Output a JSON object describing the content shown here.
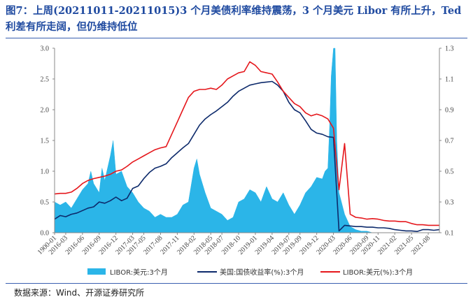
{
  "title": "图7：上周(20211011-20211015)3 个月美债利率维持震荡，3 个月美元 Libor 有所上升，Ted 利差有所走阔，但仍维持低位",
  "source": "数据来源：Wind、开源证券研究所",
  "colors": {
    "area": "#2bb5e8",
    "treasury": "#0d2a6b",
    "libor_line": "#e5171c",
    "title": "#1f4aa0"
  },
  "chart_data": {
    "type": "area+line",
    "x_tick_labels": [
      "1900-01",
      "2016-03",
      "2016-06",
      "2016-09",
      "2016-12",
      "2017-03",
      "2017-05",
      "2017-08",
      "2017-11",
      "2018-02",
      "2018-05",
      "2018-07",
      "2018-10",
      "2019-01",
      "2019-04",
      "2019-07",
      "2019-09",
      "2019-12",
      "2020-03",
      "2020-06",
      "2020-09",
      "2020-11",
      "2021-02",
      "2021-05",
      "2021-08"
    ],
    "ylim_left": [
      0.0,
      3.0
    ],
    "yticks_left": [
      "0.0",
      "0.5",
      "1.0",
      "1.5",
      "2.0",
      "2.5",
      "3.0"
    ],
    "ylim_right": [
      0.1,
      1.3
    ],
    "yticks_right": [
      "0.1",
      "0.3",
      "0.5",
      "0.7",
      "0.9",
      "1.1",
      "1.3"
    ],
    "x_tick_index": [
      0,
      2,
      5,
      8,
      11,
      14,
      16,
      19,
      22,
      25,
      28,
      30,
      33,
      36,
      39,
      42,
      44,
      47,
      50,
      53,
      56,
      58,
      61,
      64,
      67
    ],
    "series": [
      {
        "name": "LIBOR:美元:3个月",
        "axis": "right",
        "style": "area",
        "x": [
          0,
          1,
          2,
          3,
          4,
          5,
          6,
          6.5,
          7,
          8,
          8.5,
          9,
          10,
          10.5,
          11,
          12,
          13,
          14,
          15,
          16,
          17,
          18,
          19,
          20,
          21,
          22,
          23,
          24,
          25,
          25.5,
          26,
          27,
          28,
          29,
          30,
          31,
          32,
          33,
          34,
          35,
          36,
          37,
          38,
          39,
          40,
          41,
          42,
          43,
          44,
          45,
          46,
          47,
          48,
          48.5,
          49,
          49.3,
          49.6,
          50,
          50.3,
          50.6,
          51,
          52,
          53,
          54,
          55,
          56,
          57,
          58,
          59,
          60,
          61,
          62,
          63,
          64,
          65,
          66,
          67,
          68,
          69
        ],
        "values": [
          0.3,
          0.28,
          0.3,
          0.26,
          0.32,
          0.38,
          0.42,
          0.5,
          0.42,
          0.36,
          0.52,
          0.44,
          0.6,
          0.7,
          0.48,
          0.5,
          0.4,
          0.36,
          0.3,
          0.26,
          0.24,
          0.2,
          0.22,
          0.2,
          0.2,
          0.22,
          0.28,
          0.3,
          0.52,
          0.58,
          0.48,
          0.36,
          0.26,
          0.24,
          0.22,
          0.18,
          0.2,
          0.3,
          0.32,
          0.38,
          0.36,
          0.3,
          0.4,
          0.32,
          0.3,
          0.36,
          0.28,
          0.22,
          0.28,
          0.36,
          0.4,
          0.46,
          0.45,
          0.5,
          0.52,
          0.78,
          1.12,
          1.3,
          1.3,
          0.7,
          0.36,
          0.22,
          0.14,
          0.12,
          0.11,
          0.11,
          0.1,
          0.1,
          0.1,
          0.1,
          0.1,
          0.1,
          0.1,
          0.1,
          0.1,
          0.1,
          0.1,
          0.1,
          0.1
        ]
      },
      {
        "name": "美国:国债收益率(%):3个月",
        "axis": "left",
        "style": "line",
        "x": [
          0,
          1,
          2,
          3,
          4,
          5,
          6,
          7,
          8,
          9,
          10,
          11,
          12,
          13,
          14,
          15,
          16,
          17,
          18,
          19,
          20,
          21,
          22,
          23,
          24,
          25,
          26,
          27,
          28,
          29,
          30,
          31,
          32,
          33,
          34,
          35,
          36,
          37,
          38,
          39,
          40,
          41,
          42,
          43,
          44,
          45,
          46,
          47,
          48,
          49,
          50,
          51,
          52,
          53,
          54,
          55,
          56,
          57,
          58,
          59,
          60,
          61,
          62,
          63,
          64,
          65,
          66,
          67,
          68,
          69
        ],
        "values": [
          0.22,
          0.28,
          0.26,
          0.3,
          0.32,
          0.36,
          0.4,
          0.42,
          0.5,
          0.48,
          0.52,
          0.58,
          0.52,
          0.56,
          0.72,
          0.76,
          0.88,
          0.98,
          1.05,
          1.08,
          1.12,
          1.22,
          1.3,
          1.38,
          1.45,
          1.6,
          1.75,
          1.85,
          1.92,
          1.98,
          2.05,
          2.12,
          2.22,
          2.3,
          2.35,
          2.4,
          2.42,
          2.44,
          2.45,
          2.46,
          2.4,
          2.3,
          2.12,
          2.0,
          1.95,
          1.82,
          1.68,
          1.62,
          1.6,
          1.56,
          1.55,
          0.03,
          0.12,
          0.11,
          0.1,
          0.1,
          0.09,
          0.09,
          0.08,
          0.08,
          0.07,
          0.05,
          0.04,
          0.03,
          0.03,
          0.02,
          0.05,
          0.05,
          0.04,
          0.05
        ]
      },
      {
        "name": "LIBOR:美元(%):3个月",
        "axis": "left",
        "style": "line",
        "x": [
          0,
          1,
          2,
          3,
          4,
          5,
          6,
          7,
          8,
          9,
          10,
          11,
          12,
          13,
          14,
          15,
          16,
          17,
          18,
          19,
          20,
          21,
          22,
          23,
          24,
          25,
          26,
          27,
          28,
          29,
          30,
          31,
          32,
          33,
          34,
          35,
          36,
          37,
          38,
          39,
          40,
          41,
          42,
          43,
          44,
          45,
          46,
          47,
          48,
          49,
          50,
          51,
          52,
          53,
          54,
          55,
          56,
          57,
          58,
          59,
          60,
          61,
          62,
          63,
          64,
          65,
          66,
          67,
          68,
          69
        ],
        "values": [
          0.63,
          0.64,
          0.64,
          0.66,
          0.72,
          0.8,
          0.85,
          0.88,
          0.9,
          0.92,
          0.95,
          1.0,
          1.02,
          1.08,
          1.15,
          1.2,
          1.25,
          1.3,
          1.35,
          1.38,
          1.4,
          1.6,
          1.8,
          2.0,
          2.2,
          2.3,
          2.33,
          2.33,
          2.35,
          2.33,
          2.4,
          2.5,
          2.55,
          2.6,
          2.62,
          2.78,
          2.72,
          2.62,
          2.6,
          2.58,
          2.45,
          2.3,
          2.2,
          2.1,
          2.05,
          1.95,
          1.9,
          1.93,
          1.9,
          1.85,
          1.7,
          0.7,
          1.45,
          0.3,
          0.25,
          0.24,
          0.22,
          0.23,
          0.22,
          0.2,
          0.19,
          0.19,
          0.18,
          0.18,
          0.15,
          0.13,
          0.13,
          0.12,
          0.12,
          0.12
        ]
      }
    ],
    "legend": [
      "LIBOR:美元:3个月",
      "美国:国债收益率(%):3个月",
      "LIBOR:美元(%):3个月"
    ]
  }
}
